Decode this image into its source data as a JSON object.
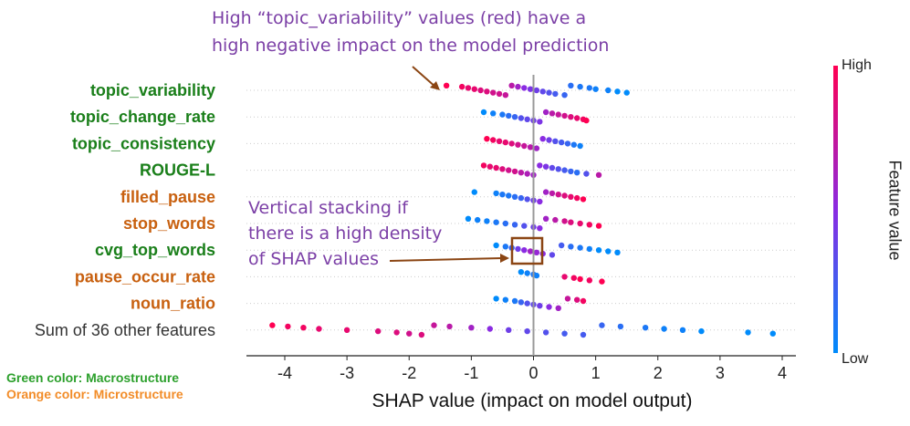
{
  "chart_data": {
    "type": "scatter",
    "subtype": "shap-beeswarm",
    "xlabel": "SHAP value (impact on model output)",
    "xlim": [
      -4.5,
      4.35
    ],
    "xticks": [
      -4,
      -3,
      -2,
      -1,
      0,
      1,
      2,
      3,
      4
    ],
    "features": [
      {
        "name": "topic_variability",
        "group": "macro",
        "points": [
          [
            -1.4,
            1.0
          ],
          [
            -1.15,
            0.95
          ],
          [
            -1.05,
            0.9
          ],
          [
            -0.95,
            0.9
          ],
          [
            -0.85,
            0.85
          ],
          [
            -0.75,
            0.85
          ],
          [
            -0.65,
            0.8
          ],
          [
            -0.55,
            0.8
          ],
          [
            -0.45,
            0.75
          ],
          [
            -0.35,
            0.7
          ],
          [
            -0.25,
            0.6
          ],
          [
            -0.15,
            0.5
          ],
          [
            -0.05,
            0.45
          ],
          [
            0.05,
            0.4
          ],
          [
            0.15,
            0.35
          ],
          [
            0.25,
            0.3
          ],
          [
            0.35,
            0.25
          ],
          [
            0.5,
            0.2
          ],
          [
            0.6,
            0.15
          ],
          [
            0.75,
            0.1
          ],
          [
            0.9,
            0.1
          ],
          [
            1.0,
            0.05
          ],
          [
            1.2,
            0.05
          ],
          [
            1.35,
            0.0
          ],
          [
            1.5,
            0.0
          ]
        ]
      },
      {
        "name": "topic_change_rate",
        "group": "macro",
        "points": [
          [
            -0.8,
            0.0
          ],
          [
            -0.65,
            0.05
          ],
          [
            -0.5,
            0.1
          ],
          [
            -0.4,
            0.15
          ],
          [
            -0.3,
            0.2
          ],
          [
            -0.2,
            0.3
          ],
          [
            -0.1,
            0.35
          ],
          [
            0.0,
            0.4
          ],
          [
            0.1,
            0.45
          ],
          [
            0.2,
            0.6
          ],
          [
            0.3,
            0.7
          ],
          [
            0.4,
            0.75
          ],
          [
            0.5,
            0.8
          ],
          [
            0.6,
            0.85
          ],
          [
            0.7,
            0.9
          ],
          [
            0.8,
            0.95
          ],
          [
            0.85,
            1.0
          ]
        ]
      },
      {
        "name": "topic_consistency",
        "group": "macro",
        "points": [
          [
            -0.75,
            1.0
          ],
          [
            -0.65,
            0.95
          ],
          [
            -0.55,
            0.9
          ],
          [
            -0.45,
            0.9
          ],
          [
            -0.35,
            0.85
          ],
          [
            -0.25,
            0.8
          ],
          [
            -0.15,
            0.75
          ],
          [
            -0.05,
            0.7
          ],
          [
            0.05,
            0.6
          ],
          [
            0.15,
            0.5
          ],
          [
            0.25,
            0.4
          ],
          [
            0.35,
            0.3
          ],
          [
            0.45,
            0.25
          ],
          [
            0.55,
            0.2
          ],
          [
            0.65,
            0.1
          ],
          [
            0.75,
            0.05
          ]
        ]
      },
      {
        "name": "ROUGE-L",
        "group": "macro",
        "points": [
          [
            -0.8,
            0.95
          ],
          [
            -0.7,
            0.9
          ],
          [
            -0.6,
            0.9
          ],
          [
            -0.5,
            0.85
          ],
          [
            -0.4,
            0.8
          ],
          [
            -0.3,
            0.8
          ],
          [
            -0.2,
            0.7
          ],
          [
            -0.1,
            0.65
          ],
          [
            0.0,
            0.6
          ],
          [
            0.1,
            0.5
          ],
          [
            0.2,
            0.45
          ],
          [
            0.3,
            0.35
          ],
          [
            0.4,
            0.3
          ],
          [
            0.5,
            0.25
          ],
          [
            0.6,
            0.2
          ],
          [
            0.7,
            0.15
          ],
          [
            0.85,
            0.3
          ],
          [
            1.05,
            0.7
          ]
        ]
      },
      {
        "name": "filled_pause",
        "group": "micro",
        "points": [
          [
            -0.95,
            0.0
          ],
          [
            -0.6,
            0.05
          ],
          [
            -0.5,
            0.1
          ],
          [
            -0.4,
            0.1
          ],
          [
            -0.3,
            0.15
          ],
          [
            -0.2,
            0.2
          ],
          [
            -0.1,
            0.3
          ],
          [
            0.0,
            0.4
          ],
          [
            0.1,
            0.5
          ],
          [
            0.2,
            0.6
          ],
          [
            0.3,
            0.7
          ],
          [
            0.4,
            0.8
          ],
          [
            0.5,
            0.85
          ],
          [
            0.6,
            0.9
          ],
          [
            0.7,
            0.95
          ],
          [
            0.8,
            1.0
          ]
        ]
      },
      {
        "name": "stop_words",
        "group": "micro",
        "points": [
          [
            -1.05,
            0.0
          ],
          [
            -0.9,
            0.05
          ],
          [
            -0.75,
            0.05
          ],
          [
            -0.6,
            0.1
          ],
          [
            -0.45,
            0.15
          ],
          [
            -0.3,
            0.2
          ],
          [
            -0.15,
            0.3
          ],
          [
            0.0,
            0.4
          ],
          [
            0.1,
            0.5
          ],
          [
            0.2,
            0.6
          ],
          [
            0.35,
            0.7
          ],
          [
            0.5,
            0.8
          ],
          [
            0.6,
            0.85
          ],
          [
            0.75,
            0.9
          ],
          [
            0.9,
            0.95
          ],
          [
            1.05,
            1.0
          ]
        ]
      },
      {
        "name": "cvg_top_words",
        "group": "macro",
        "points": [
          [
            -0.6,
            0.0
          ],
          [
            -0.45,
            0.1
          ],
          [
            -0.35,
            0.2
          ],
          [
            -0.25,
            0.4
          ],
          [
            -0.15,
            0.5
          ],
          [
            -0.05,
            0.6
          ],
          [
            0.05,
            0.55
          ],
          [
            0.15,
            0.5
          ],
          [
            0.3,
            0.35
          ],
          [
            0.45,
            0.25
          ],
          [
            0.6,
            0.15
          ],
          [
            0.75,
            0.1
          ],
          [
            0.9,
            0.05
          ],
          [
            1.05,
            0.0
          ],
          [
            1.2,
            0.0
          ],
          [
            1.35,
            0.0
          ]
        ]
      },
      {
        "name": "pause_occur_rate",
        "group": "micro",
        "points": [
          [
            -0.2,
            0.0
          ],
          [
            -0.1,
            0.05
          ],
          [
            0.0,
            0.1
          ],
          [
            0.05,
            0.05
          ],
          [
            0.5,
            0.9
          ],
          [
            0.65,
            0.95
          ],
          [
            0.75,
            1.0
          ],
          [
            0.9,
            0.95
          ],
          [
            1.1,
            1.0
          ]
        ]
      },
      {
        "name": "noun_ratio",
        "group": "micro",
        "points": [
          [
            -0.6,
            0.0
          ],
          [
            -0.45,
            0.05
          ],
          [
            -0.3,
            0.1
          ],
          [
            -0.2,
            0.2
          ],
          [
            -0.1,
            0.3
          ],
          [
            0.0,
            0.35
          ],
          [
            0.1,
            0.4
          ],
          [
            0.25,
            0.5
          ],
          [
            0.4,
            0.6
          ],
          [
            0.55,
            0.75
          ],
          [
            0.7,
            0.85
          ],
          [
            0.8,
            0.95
          ]
        ]
      },
      {
        "name": "Sum of 36 other features",
        "group": "other",
        "points": [
          [
            -4.2,
            1.0
          ],
          [
            -3.95,
            0.95
          ],
          [
            -3.7,
            0.95
          ],
          [
            -3.45,
            0.9
          ],
          [
            -3.0,
            0.9
          ],
          [
            -2.5,
            0.85
          ],
          [
            -2.2,
            0.85
          ],
          [
            -2.0,
            0.8
          ],
          [
            -1.8,
            0.85
          ],
          [
            -1.6,
            0.75
          ],
          [
            -1.35,
            0.7
          ],
          [
            -1.0,
            0.6
          ],
          [
            -0.7,
            0.5
          ],
          [
            -0.4,
            0.4
          ],
          [
            -0.1,
            0.35
          ],
          [
            0.2,
            0.3
          ],
          [
            0.5,
            0.25
          ],
          [
            0.8,
            0.25
          ],
          [
            1.1,
            0.2
          ],
          [
            1.4,
            0.15
          ],
          [
            1.8,
            0.1
          ],
          [
            2.1,
            0.05
          ],
          [
            2.4,
            0.05
          ],
          [
            2.7,
            0.0
          ],
          [
            3.45,
            0.0
          ],
          [
            3.85,
            0.0
          ]
        ]
      }
    ],
    "colorbar": {
      "title": "Feature value",
      "high": "High",
      "low": "Low"
    },
    "colors": {
      "high": "#ff0052",
      "low": "#008bfb",
      "macro": "#1a7f1a",
      "micro": "#c8600f",
      "other": "#333333",
      "annotation": "#7b3fa6",
      "arrow": "#8b4513"
    }
  },
  "annotations": {
    "top_line1": "High “topic_variability” values (red) have a",
    "top_line2": "high negative impact on the model prediction",
    "mid_line1": "Vertical stacking if",
    "mid_line2": "there is a high density",
    "mid_line3": "of SHAP values"
  },
  "legend_notes": {
    "macro": "Green color: Macrostructure",
    "micro": "Orange color: Microstructure"
  }
}
